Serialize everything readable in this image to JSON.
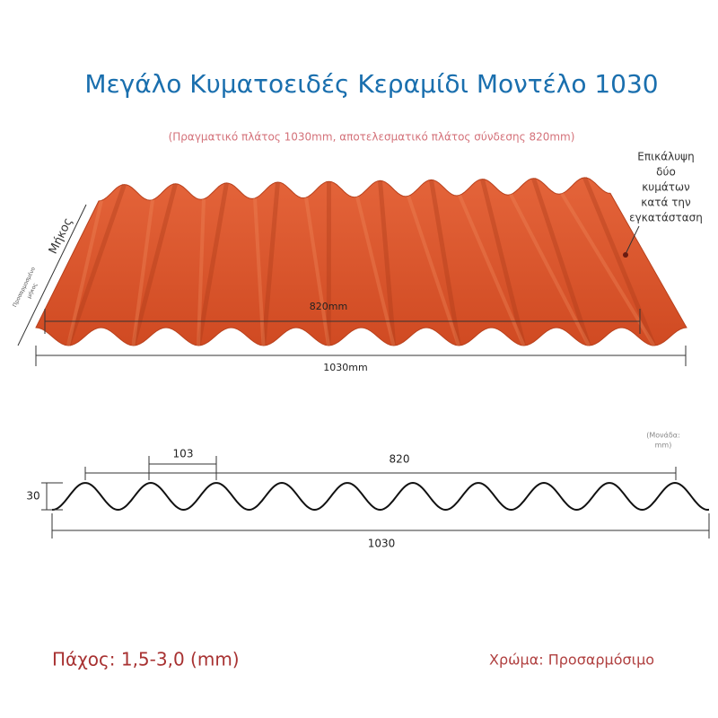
{
  "header": {
    "title": "Μεγάλο Κυματοειδές Κεραμίδι Μοντέλο 1030",
    "subtitle": "(Πραγματικό πλάτος 1030mm, αποτελεσματικό πλάτος σύνδεσης 820mm)"
  },
  "sheet": {
    "overlap_note": [
      "Επικάλυψη",
      "δύο",
      "κυμάτων",
      "κατά την",
      "εγκατάσταση"
    ],
    "length_label": "Μήκος",
    "custom_length": [
      "Προσαρμοσμένο",
      "μήκος"
    ],
    "effective_width": "820mm",
    "total_width": "1030mm"
  },
  "profile": {
    "wave_pitch": "103",
    "effective_width": "820",
    "height": "30",
    "total_width": "1030",
    "unit": [
      "(Μονάδα:",
      "mm)"
    ]
  },
  "footer": {
    "thickness": "Πάχος: 1,5-3,0 (mm)",
    "color": "Χρώμα: Προσαρμόσιμο"
  }
}
